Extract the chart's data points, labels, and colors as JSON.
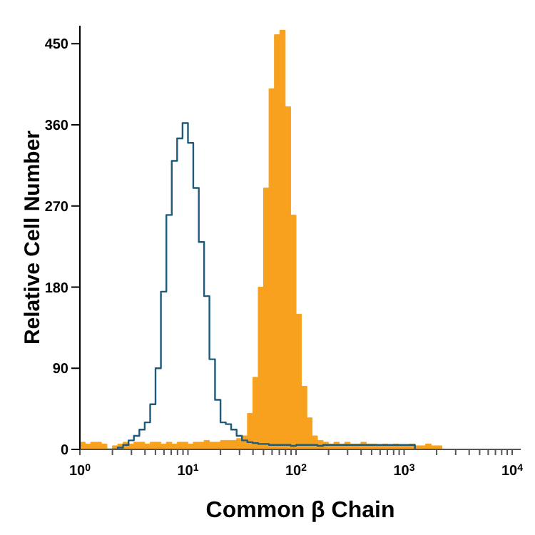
{
  "chart_data": {
    "type": "histogram",
    "xlabel": "Common β Chain",
    "ylabel": "Relative Cell Number",
    "log": "x",
    "xlim": [
      1,
      12000
    ],
    "ylim": [
      0,
      470
    ],
    "xticks": [
      {
        "value": 1,
        "label": "10$^{0}$"
      },
      {
        "value": 2,
        "label": null
      },
      {
        "value": 3,
        "label": null
      },
      {
        "value": 4,
        "label": null
      },
      {
        "value": 5,
        "label": null
      },
      {
        "value": 6,
        "label": null
      },
      {
        "value": 7,
        "label": null
      },
      {
        "value": 8,
        "label": null
      },
      {
        "value": 9,
        "label": null
      },
      {
        "value": 10,
        "label": "10$^{1}$"
      },
      {
        "value": 20,
        "label": null
      },
      {
        "value": 30,
        "label": null
      },
      {
        "value": 40,
        "label": null
      },
      {
        "value": 50,
        "label": null
      },
      {
        "value": 60,
        "label": null
      },
      {
        "value": 70,
        "label": null
      },
      {
        "value": 80,
        "label": null
      },
      {
        "value": 90,
        "label": null
      },
      {
        "value": 100,
        "label": "10$^{2}$"
      },
      {
        "value": 200,
        "label": null
      },
      {
        "value": 300,
        "label": null
      },
      {
        "value": 400,
        "label": null
      },
      {
        "value": 500,
        "label": null
      },
      {
        "value": 600,
        "label": null
      },
      {
        "value": 700,
        "label": null
      },
      {
        "value": 800,
        "label": null
      },
      {
        "value": 900,
        "label": null
      },
      {
        "value": 1000,
        "label": "10$^{3}$"
      },
      {
        "value": 2000,
        "label": null
      },
      {
        "value": 3000,
        "label": null
      },
      {
        "value": 4000,
        "label": null
      },
      {
        "value": 5000,
        "label": null
      },
      {
        "value": 6000,
        "label": null
      },
      {
        "value": 7000,
        "label": null
      },
      {
        "value": 8000,
        "label": null
      },
      {
        "value": 9000,
        "label": null
      },
      {
        "value": 10000,
        "label": "10$^{4}$"
      }
    ],
    "yticks": [
      0,
      90,
      180,
      270,
      360,
      450
    ],
    "grid": false,
    "legend": false,
    "bins": [
      1,
      1.12,
      1.26,
      1.41,
      1.58,
      1.78,
      2.0,
      2.24,
      2.51,
      2.82,
      3.16,
      3.55,
      3.98,
      4.47,
      5.01,
      5.62,
      6.31,
      7.08,
      7.94,
      8.91,
      10,
      11.2,
      12.6,
      14.1,
      15.8,
      17.8,
      20.0,
      22.4,
      25.1,
      28.2,
      31.6,
      35.5,
      39.8,
      44.7,
      50.1,
      56.2,
      63.1,
      70.8,
      79.4,
      89.1,
      100,
      112,
      126,
      141,
      158,
      178,
      200,
      224,
      251,
      282,
      316,
      355,
      398,
      447,
      501,
      562,
      631,
      708,
      794,
      891,
      1000,
      1120,
      1260,
      1410,
      1580,
      1780,
      2000,
      2240,
      2510
    ],
    "series": [
      {
        "color": "#f7a11e",
        "values": [
          8,
          6,
          8,
          8,
          6,
          0,
          4,
          6,
          8,
          6,
          8,
          8,
          6,
          8,
          8,
          6,
          8,
          6,
          8,
          8,
          6,
          8,
          8,
          10,
          8,
          8,
          10,
          10,
          10,
          12,
          15,
          40,
          80,
          180,
          290,
          400,
          460,
          465,
          380,
          260,
          150,
          70,
          35,
          15,
          10,
          8,
          6,
          8,
          6,
          8,
          6,
          6,
          8,
          6,
          6,
          4,
          6,
          4,
          6,
          4,
          4,
          6,
          4,
          4,
          6,
          4,
          4,
          0
        ]
      },
      {
        "type": "step",
        "color": "#1f5a7a",
        "x": [
          1.78,
          2.0,
          2.24,
          2.51,
          2.82,
          3.16,
          3.55,
          3.98,
          4.47,
          5.01,
          5.62,
          6.31,
          7.08,
          7.94,
          8.91,
          10,
          11.2,
          12.6,
          14.1,
          15.8,
          17.8,
          20.0,
          22.4,
          25.1,
          28.2,
          31.6,
          35.5,
          39.8,
          44.7,
          50.1,
          56.2,
          63.1,
          70.8,
          79.4,
          89.1,
          100,
          112,
          126,
          141,
          158,
          178,
          200,
          224,
          251,
          282,
          316,
          355,
          398,
          447,
          501,
          562,
          631,
          708,
          794,
          891,
          1000,
          1120,
          1260
        ],
        "values": [
          0,
          0,
          2,
          5,
          10,
          15,
          22,
          30,
          50,
          90,
          175,
          260,
          320,
          345,
          362,
          340,
          290,
          230,
          170,
          100,
          55,
          30,
          28,
          22,
          15,
          10,
          8,
          7,
          6,
          6,
          5,
          5,
          5,
          5,
          4,
          5,
          5,
          5,
          5,
          4,
          5,
          5,
          5,
          5,
          5,
          5,
          5,
          5,
          5,
          5,
          5,
          5,
          5,
          5,
          5,
          5,
          5,
          0
        ]
      }
    ]
  }
}
